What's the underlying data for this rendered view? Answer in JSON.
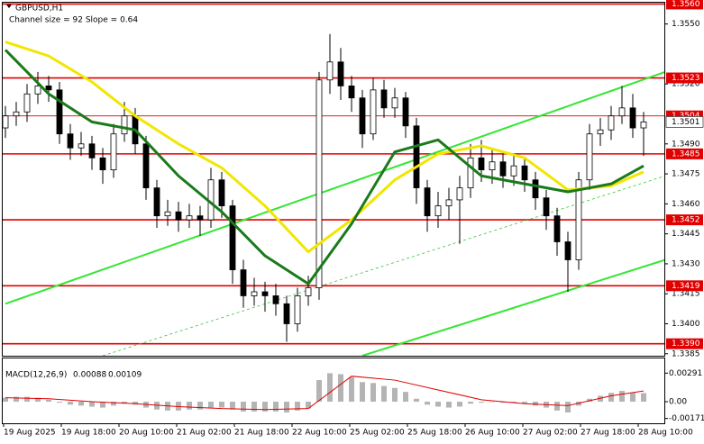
{
  "chart_data": {
    "type": "candlestick",
    "title": "GBPUSD,H1",
    "subtitle": "Channel size = 92 Slope = 0.64",
    "x_labels": [
      "19 Aug 2025",
      "19 Aug 18:00",
      "20 Aug 10:00",
      "21 Aug 02:00",
      "21 Aug 18:00",
      "22 Aug 10:00",
      "25 Aug 02:00",
      "25 Aug 18:00",
      "26 Aug 10:00",
      "27 Aug 02:00",
      "27 Aug 18:00",
      "28 Aug 10:00"
    ],
    "open": [
      1.3498,
      1.3504,
      1.3506,
      1.3515,
      1.3519,
      1.3517,
      1.3495,
      1.3488,
      1.349,
      1.3483,
      1.3477,
      1.3495,
      1.3504,
      1.349,
      1.3468,
      1.3454,
      1.3456,
      1.3452,
      1.3454,
      1.3452,
      1.3472,
      1.3459,
      1.3427,
      1.3414,
      1.3416,
      1.3414,
      1.341,
      1.34,
      1.3414,
      1.3418,
      1.3522,
      1.3531,
      1.3519,
      1.3513,
      1.3495,
      1.3517,
      1.3508,
      1.3513,
      1.3499,
      1.3468,
      1.3454,
      1.3459,
      1.3462,
      1.3468,
      1.3483,
      1.3477,
      1.3481,
      1.3474,
      1.3479,
      1.3472,
      1.3463,
      1.3454,
      1.3441,
      1.3432,
      1.3472,
      1.3495,
      1.3497,
      1.3504,
      1.3508,
      1.3498
    ],
    "high": [
      1.3509,
      1.3511,
      1.352,
      1.3526,
      1.3524,
      1.3521,
      1.35,
      1.3496,
      1.3494,
      1.3488,
      1.35,
      1.3511,
      1.3508,
      1.3494,
      1.3472,
      1.3462,
      1.3461,
      1.346,
      1.3459,
      1.3478,
      1.3476,
      1.3462,
      1.3432,
      1.3423,
      1.3421,
      1.342,
      1.3414,
      1.3418,
      1.3424,
      1.3526,
      1.3545,
      1.3538,
      1.3524,
      1.3517,
      1.3523,
      1.3522,
      1.3518,
      1.3516,
      1.3503,
      1.3472,
      1.3466,
      1.3468,
      1.3474,
      1.349,
      1.3492,
      1.3487,
      1.3486,
      1.3484,
      1.3483,
      1.3476,
      1.3467,
      1.3458,
      1.3446,
      1.3476,
      1.35,
      1.3503,
      1.3509,
      1.3519,
      1.3515,
      1.3506
    ],
    "low": [
      1.3493,
      1.3499,
      1.3501,
      1.351,
      1.3511,
      1.349,
      1.3482,
      1.3484,
      1.3477,
      1.347,
      1.3473,
      1.3491,
      1.3485,
      1.3462,
      1.3448,
      1.3449,
      1.3446,
      1.3448,
      1.3444,
      1.3448,
      1.3453,
      1.342,
      1.3408,
      1.3409,
      1.3406,
      1.3404,
      1.3391,
      1.3396,
      1.3409,
      1.3412,
      1.3515,
      1.3512,
      1.3506,
      1.3488,
      1.3492,
      1.3503,
      1.3503,
      1.3493,
      1.346,
      1.3446,
      1.3448,
      1.3452,
      1.344,
      1.3463,
      1.3471,
      1.347,
      1.3468,
      1.3469,
      1.3466,
      1.3457,
      1.3447,
      1.3434,
      1.3416,
      1.3427,
      1.3467,
      1.3489,
      1.3492,
      1.35,
      1.3493,
      1.3484
    ],
    "close": [
      1.3504,
      1.3506,
      1.3515,
      1.3519,
      1.3517,
      1.3495,
      1.3488,
      1.349,
      1.3483,
      1.3477,
      1.3495,
      1.3504,
      1.349,
      1.3468,
      1.3454,
      1.3456,
      1.3452,
      1.3454,
      1.3452,
      1.3472,
      1.3459,
      1.3427,
      1.3414,
      1.3416,
      1.3414,
      1.341,
      1.34,
      1.3414,
      1.3418,
      1.3522,
      1.3531,
      1.3519,
      1.3513,
      1.3495,
      1.3517,
      1.3508,
      1.3513,
      1.3499,
      1.3468,
      1.3454,
      1.3459,
      1.3462,
      1.3468,
      1.3483,
      1.3477,
      1.3481,
      1.3474,
      1.3479,
      1.3472,
      1.3463,
      1.3454,
      1.3441,
      1.3432,
      1.3472,
      1.3495,
      1.3497,
      1.3504,
      1.3508,
      1.3498,
      1.3501
    ],
    "ylim": [
      1.3384,
      1.3562
    ],
    "yticks": [
      1.3385,
      {
        "value": 1.34,
        "label": "1.3400"
      },
      1.3415,
      {
        "value": 1.343,
        "label": "1.3430"
      },
      1.3445,
      {
        "value": 1.346,
        "label": "1.3460"
      },
      1.3475,
      {
        "value": 1.349,
        "label": "1.3490"
      },
      {
        "value": 1.352,
        "label": "1.3520"
      },
      {
        "value": 1.355,
        "label": "1.3550"
      }
    ],
    "level_color": "#e00000",
    "levels": [
      {
        "value": 1.356,
        "label": "1.3560"
      },
      1.3523,
      1.3504,
      1.3485,
      1.3452,
      1.3419,
      {
        "value": 1.339,
        "label": "1.3390"
      }
    ],
    "moving_averages": [
      {
        "color": "#f2e600",
        "x": [
          0,
          4,
          8,
          12,
          16,
          20,
          24,
          28,
          32,
          36,
          40,
          44,
          48,
          52,
          56,
          59
        ],
        "values": [
          1.3541,
          1.3534,
          1.3521,
          1.3504,
          1.349,
          1.3478,
          1.3459,
          1.3436,
          1.3452,
          1.3472,
          1.3485,
          1.3489,
          1.3483,
          1.3467,
          1.3469,
          1.3476
        ]
      },
      {
        "color": "#1a7a1a",
        "x": [
          0,
          4,
          8,
          12,
          16,
          20,
          24,
          28,
          32,
          36,
          40,
          44,
          48,
          52,
          56,
          59
        ],
        "values": [
          1.3537,
          1.3515,
          1.3501,
          1.3497,
          1.3474,
          1.3456,
          1.3434,
          1.342,
          1.345,
          1.3486,
          1.3492,
          1.3474,
          1.347,
          1.3466,
          1.347,
          1.3479
        ]
      }
    ],
    "channel_lines": [
      {
        "color": "#33e633",
        "dashed": false,
        "x": [
          0,
          61
        ],
        "values": [
          1.341,
          1.3526
        ]
      },
      {
        "color": "#33e633",
        "dashed": false,
        "x": [
          33,
          61
        ],
        "values": [
          1.3384,
          1.3432
        ]
      },
      {
        "color": "#33c633",
        "dashed": true,
        "x": [
          9,
          61
        ],
        "values": [
          1.3384,
          1.3474
        ]
      }
    ],
    "macd": {
      "title": "MACD(12,26,9)",
      "hist_color": "#b4b4b4",
      "histogram": [
        0.0004,
        0.0005,
        0.0005,
        0.0004,
        0.0002,
        -0.0001,
        -0.0003,
        -0.0004,
        -0.0005,
        -0.0006,
        -0.0004,
        -0.0002,
        -0.0003,
        -0.0006,
        -0.0008,
        -0.0009,
        -0.0009,
        -0.0008,
        -0.0008,
        -0.0006,
        -0.0006,
        -0.0008,
        -0.001,
        -0.001,
        -0.001,
        -0.001,
        -0.0011,
        -0.0009,
        -0.0007,
        0.0022,
        0.0029,
        0.0028,
        0.0025,
        0.002,
        0.0019,
        0.0016,
        0.0014,
        0.001,
        0.0003,
        -0.0003,
        -0.0005,
        -0.0006,
        -0.0005,
        -0.0002,
        -0.0001,
        0,
        -0.0001,
        -0.0001,
        -0.0002,
        -0.0004,
        -0.0006,
        -0.0009,
        -0.0011,
        -0.0004,
        0.0003,
        0.0006,
        0.0009,
        0.0011,
        0.0009,
        0.00088
      ],
      "signal": {
        "color": "#e00000",
        "x": [
          0,
          4,
          8,
          12,
          16,
          20,
          24,
          28,
          32,
          36,
          40,
          44,
          48,
          52,
          56,
          59
        ],
        "values": [
          0.0004,
          0.0003,
          0,
          -0.0002,
          -0.0005,
          -0.0007,
          -0.0008,
          -0.0007,
          0.0026,
          0.0022,
          0.0012,
          0.0002,
          -0.0002,
          -0.0004,
          0.0006,
          0.00109
        ]
      },
      "ylim": [
        -0.0022,
        0.0045
      ],
      "yticks": [
        -0.00171,
        {
          "value": 0,
          "label": "0.00"
        },
        0.00291
      ]
    }
  }
}
